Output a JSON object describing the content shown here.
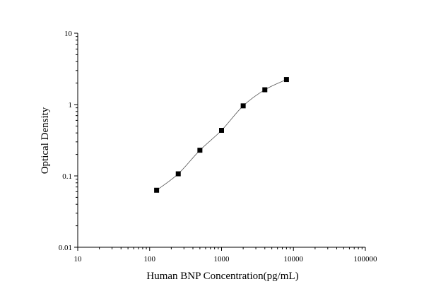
{
  "chart_data": {
    "type": "scatter",
    "xlabel": "Human BNP Concentration(pg/mL)",
    "ylabel": "Optical Density",
    "x_scale": "log",
    "y_scale": "log",
    "xlim": [
      10,
      100000
    ],
    "ylim": [
      0.01,
      10
    ],
    "x_ticks": [
      "10",
      "100",
      "1000",
      "10000",
      "100000"
    ],
    "y_ticks": [
      "0.01",
      "0.1",
      "1",
      "10"
    ],
    "grid": false,
    "series": [
      {
        "marker": "square",
        "fitted_curve": true,
        "x": [
          125,
          250,
          500,
          1000,
          2000,
          4000,
          8000
        ],
        "y": [
          0.063,
          0.107,
          0.229,
          0.435,
          0.959,
          1.612,
          2.243
        ]
      }
    ],
    "colors": {
      "marker": "#000000",
      "curve": "#555555",
      "axis": "#000000"
    }
  }
}
